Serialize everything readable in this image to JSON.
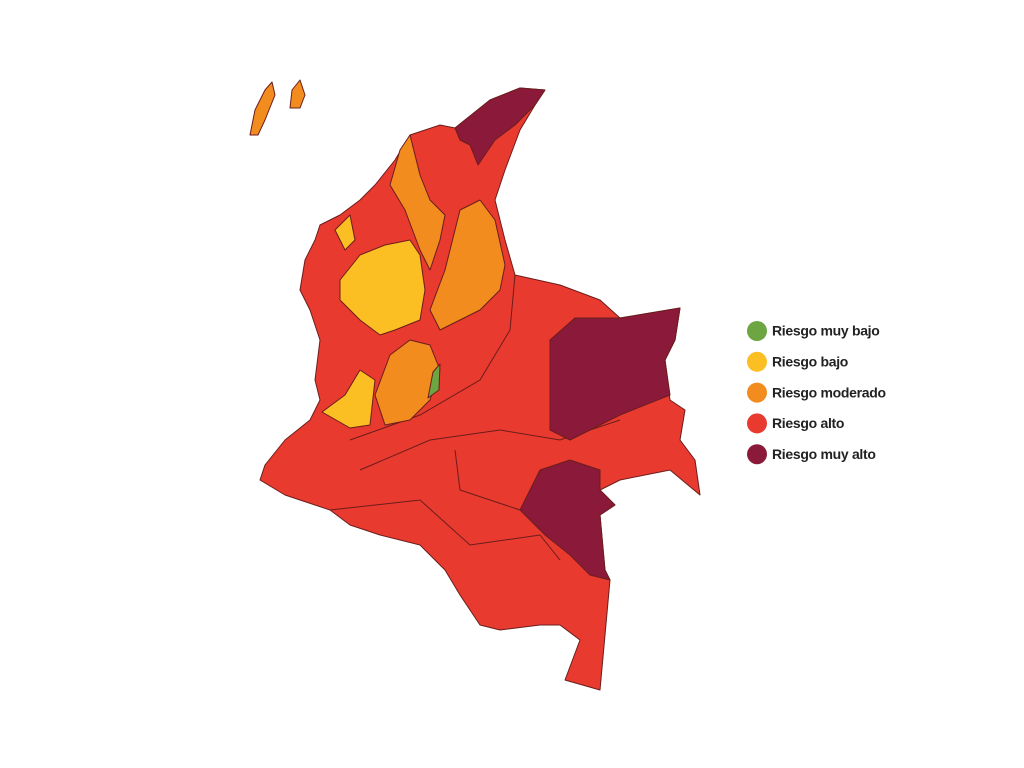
{
  "legend": {
    "items": [
      {
        "label": "Riesgo muy bajo",
        "color": "#6ca542"
      },
      {
        "label": "Riesgo bajo",
        "color": "#fbbf23"
      },
      {
        "label": "Riesgo moderado",
        "color": "#f28c1e"
      },
      {
        "label": "Riesgo alto",
        "color": "#e83a2e"
      },
      {
        "label": "Riesgo muy alto",
        "color": "#8b1a3a"
      }
    ]
  }
}
